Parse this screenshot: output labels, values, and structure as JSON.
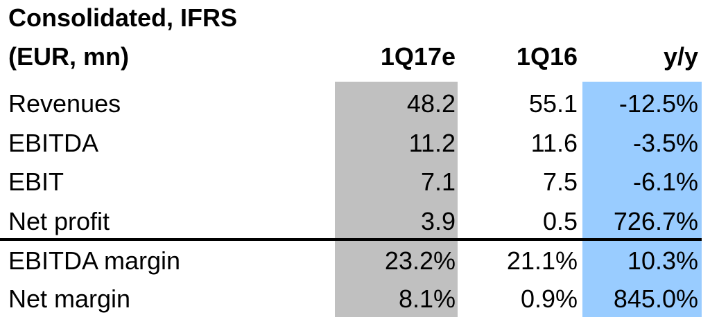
{
  "header": {
    "title": "Consolidated, IFRS"
  },
  "table": {
    "columns": [
      "(EUR, mn)",
      "1Q17e",
      "1Q16",
      "y/y"
    ],
    "rows": [
      [
        "Revenues",
        "48.2",
        "55.1",
        "-12.5%"
      ],
      [
        "EBITDA",
        "11.2",
        "11.6",
        "-3.5%"
      ],
      [
        "EBIT",
        "7.1",
        "7.5",
        "-6.1%"
      ],
      [
        "Net profit",
        "3.9",
        "0.5",
        "726.7%"
      ],
      [
        "EBITDA margin",
        "23.2%",
        "21.1%",
        "10.3%"
      ],
      [
        "Net margin",
        "8.1%",
        "0.9%",
        "845.0%"
      ]
    ]
  }
}
